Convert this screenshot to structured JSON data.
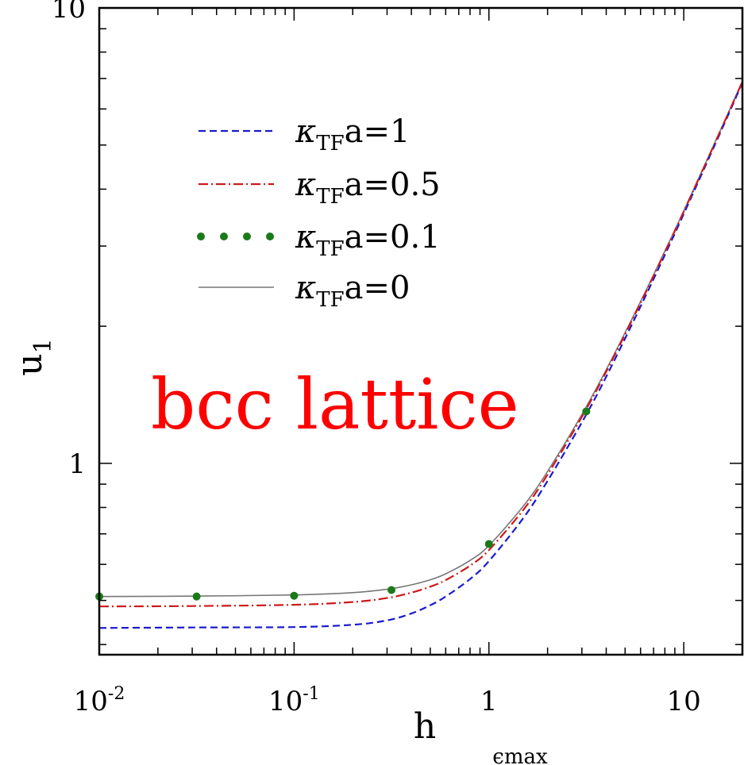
{
  "chart_data": {
    "type": "line",
    "xlabel": "h",
    "ylabel": "u",
    "ylabel_sub": "1",
    "xscale": "log",
    "yscale": "log",
    "xlim": [
      0.01,
      20
    ],
    "ylim": [
      0.38,
      10
    ],
    "x_ticks": [
      {
        "value": 0.01,
        "base": "10",
        "exp": "-2"
      },
      {
        "value": 0.1,
        "base": "10",
        "exp": "-1"
      },
      {
        "value": 1,
        "base": "1",
        "exp": ""
      },
      {
        "value": 10,
        "base": "10",
        "exp": ""
      }
    ],
    "y_ticks": [
      {
        "value": 1,
        "label": "1"
      },
      {
        "value": 10,
        "label": "10"
      }
    ],
    "grid": false,
    "legend_position": "top-left",
    "annotation": {
      "text": "bcc lattice",
      "color": "#ff0000"
    },
    "cut_off_text": "ϵmax",
    "series": [
      {
        "name": "κTFa=1",
        "label_symbol": "κ",
        "label_sub": "TF",
        "label_rest": "a=1",
        "color": "#1a1acc",
        "dash": "9,5",
        "width": 2.2,
        "style": "dashed",
        "x": [
          0.01,
          0.03,
          0.1,
          0.2,
          0.3,
          0.4,
          0.5,
          0.6,
          0.8,
          1.0,
          1.5,
          2.0,
          3.0,
          4.0,
          6.0,
          8.0,
          10.0,
          15.0,
          20.0
        ],
        "y": [
          0.435,
          0.436,
          0.437,
          0.442,
          0.452,
          0.468,
          0.488,
          0.51,
          0.557,
          0.61,
          0.758,
          0.915,
          1.23,
          1.55,
          2.21,
          2.87,
          3.53,
          5.19,
          6.85
        ]
      },
      {
        "name": "κTFa=0.5",
        "label_symbol": "κ",
        "label_sub": "TF",
        "label_rest": "a=0.5",
        "color": "#cc1a1a",
        "dash": "12,4,2,4",
        "width": 2.2,
        "style": "dash-dot",
        "x": [
          0.01,
          0.03,
          0.1,
          0.2,
          0.3,
          0.4,
          0.5,
          0.6,
          0.8,
          1.0,
          1.5,
          2.0,
          3.0,
          4.0,
          6.0,
          8.0,
          10.0,
          15.0,
          20.0
        ],
        "y": [
          0.485,
          0.486,
          0.489,
          0.496,
          0.506,
          0.52,
          0.536,
          0.554,
          0.596,
          0.645,
          0.79,
          0.945,
          1.265,
          1.59,
          2.25,
          2.91,
          3.57,
          5.23,
          6.89
        ]
      },
      {
        "name": "κTFa=0.1",
        "label_symbol": "κ",
        "label_sub": "TF",
        "label_rest": "a=0.1",
        "color": "#1a7a1a",
        "style": "dots",
        "marker_r": 5,
        "x": [
          0.01,
          0.0316,
          0.1,
          0.316,
          1.0,
          3.16
        ],
        "y": [
          0.51,
          0.51,
          0.512,
          0.527,
          0.665,
          1.3
        ]
      },
      {
        "name": "κTFa=0",
        "label_symbol": "κ",
        "label_sub": "TF",
        "label_rest": "a=0",
        "color": "#777777",
        "dash": "",
        "width": 1.6,
        "style": "solid",
        "x": [
          0.01,
          0.03,
          0.1,
          0.2,
          0.3,
          0.4,
          0.5,
          0.6,
          0.8,
          1.0,
          1.5,
          2.0,
          3.0,
          4.0,
          6.0,
          8.0,
          10.0,
          15.0,
          20.0
        ],
        "y": [
          0.51,
          0.511,
          0.514,
          0.52,
          0.529,
          0.541,
          0.555,
          0.572,
          0.612,
          0.66,
          0.805,
          0.96,
          1.28,
          1.605,
          2.265,
          2.925,
          3.585,
          5.245,
          6.905
        ]
      }
    ]
  }
}
